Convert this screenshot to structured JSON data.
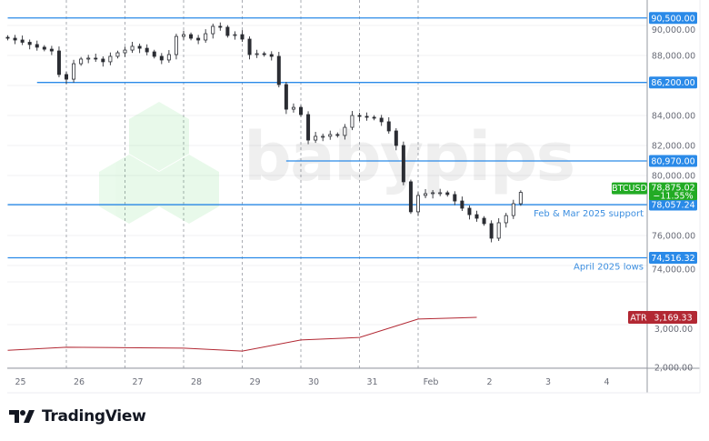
{
  "chart_data": {
    "type": "candlestick",
    "symbol": "BTCUSD",
    "price_axis": {
      "range": [
        71500,
        91500
      ],
      "ticks": [
        "90,000.00",
        "88,000.00",
        "84,000.00",
        "82,000.00",
        "80,000.00",
        "76,000.00",
        "74,000.00"
      ],
      "tick_values": [
        90000,
        88000,
        84000,
        82000,
        80000,
        76000,
        74000
      ]
    },
    "time_axis": {
      "labels": [
        "25",
        "26",
        "27",
        "28",
        "29",
        "30",
        "31",
        "Feb",
        "2",
        "3",
        "4"
      ],
      "label_times": [
        "Jan 25",
        "Jan 26",
        "Jan 27",
        "Jan 28",
        "Jan 29",
        "Jan 30",
        "Jan 31",
        "Feb 1",
        "Feb 2",
        "Feb 3",
        "Feb 4"
      ]
    },
    "grid": true,
    "price_series": {
      "times": [
        "Jan 25 00:00",
        "Jan 25 03:00",
        "Jan 25 06:00",
        "Jan 25 09:00",
        "Jan 25 12:00",
        "Jan 25 15:00",
        "Jan 25 18:00",
        "Jan 25 21:00",
        "Jan 26 00:00",
        "Jan 26 03:00",
        "Jan 26 06:00",
        "Jan 26 09:00",
        "Jan 26 12:00",
        "Jan 26 15:00",
        "Jan 26 18:00",
        "Jan 26 21:00",
        "Jan 27 00:00",
        "Jan 27 03:00",
        "Jan 27 06:00",
        "Jan 27 09:00",
        "Jan 27 12:00",
        "Jan 27 15:00",
        "Jan 27 18:00",
        "Jan 27 21:00",
        "Jan 28 00:00",
        "Jan 28 03:00",
        "Jan 28 06:00",
        "Jan 28 09:00",
        "Jan 28 12:00",
        "Jan 28 15:00",
        "Jan 28 18:00",
        "Jan 28 21:00",
        "Jan 29 00:00",
        "Jan 29 03:00",
        "Jan 29 06:00",
        "Jan 29 09:00",
        "Jan 29 12:00",
        "Jan 29 15:00",
        "Jan 29 18:00",
        "Jan 29 21:00",
        "Jan 30 00:00",
        "Jan 30 03:00",
        "Jan 30 06:00",
        "Jan 30 09:00",
        "Jan 30 12:00",
        "Jan 30 15:00",
        "Jan 30 18:00",
        "Jan 30 21:00",
        "Jan 31 00:00",
        "Jan 31 03:00",
        "Jan 31 06:00",
        "Jan 31 09:00",
        "Jan 31 12:00",
        "Jan 31 15:00",
        "Jan 31 18:00",
        "Jan 31 21:00",
        "Feb 1 00:00",
        "Feb 1 03:00",
        "Feb 1 06:00",
        "Feb 1 09:00",
        "Feb 1 12:00",
        "Feb 1 15:00",
        "Feb 1 18:00",
        "Feb 1 21:00",
        "Feb 2 00:00",
        "Feb 2 03:00",
        "Feb 2 06:00",
        "Feb 2 09:00",
        "Feb 2 12:00",
        "Feb 2 15:00",
        "Feb 2 18:00"
      ],
      "close": [
        89150,
        89030,
        88880,
        88730,
        88550,
        88420,
        88300,
        86730,
        86420,
        87450,
        87760,
        87820,
        87760,
        87580,
        87940,
        88180,
        88360,
        88610,
        88480,
        88240,
        87940,
        87700,
        88060,
        89270,
        89390,
        89150,
        89030,
        89450,
        89940,
        89880,
        89330,
        89390,
        89090,
        88060,
        88120,
        88060,
        87940,
        86060,
        84420,
        84540,
        84060,
        82360,
        82610,
        82610,
        82730,
        82670,
        83210,
        84000,
        83940,
        83880,
        83820,
        83580,
        82970,
        82000,
        79580,
        77580,
        78670,
        78790,
        78850,
        78850,
        78730,
        78300,
        77820,
        77390,
        77150,
        76790,
        75820,
        76850,
        77330,
        78120,
        78875
      ]
    },
    "last_price": {
      "label": "BTCUSD",
      "value": "78,875.02",
      "change": "−11.55%",
      "color": "#22ab24"
    },
    "levels": [
      {
        "value": 90500,
        "label": "90,500.00",
        "start": "Jan 25 00:00",
        "note": ""
      },
      {
        "value": 86200,
        "label": "86,200.00",
        "start": "Jan 25 12:00",
        "note": ""
      },
      {
        "value": 80970,
        "label": "80,970.00",
        "start": "Jan 29 18:00",
        "note": ""
      },
      {
        "value": 78057.24,
        "label": "78,057.24",
        "start": "Jan 25 00:00",
        "note": "Feb & Mar 2025 support"
      },
      {
        "value": 74516.32,
        "label": "74,516.32",
        "start": "Jan 25 00:00",
        "note": "April 2025 lows"
      }
    ],
    "level_color": "#2a8ae8",
    "indicator": {
      "name": "ATR",
      "value": "3,169.33",
      "color": "#b22833",
      "range": [
        1980,
        4000
      ],
      "ticks": [
        "3,000.00",
        "2,000.00"
      ],
      "tick_values": [
        3000,
        2000
      ],
      "times": [
        "Jan 25 00:00",
        "Jan 26 00:00",
        "Jan 27 00:00",
        "Jan 28 00:00",
        "Jan 29 00:00",
        "Jan 30 00:00",
        "Jan 31 00:00",
        "Feb 1 00:00",
        "Feb 2 00:00"
      ],
      "values": [
        2400,
        2470,
        2460,
        2450,
        2380,
        2640,
        2700,
        3130,
        3169.33
      ]
    }
  },
  "watermark": {
    "text": "babypips",
    "color": "#2ecc40"
  },
  "branding": {
    "name": "TradingView"
  }
}
